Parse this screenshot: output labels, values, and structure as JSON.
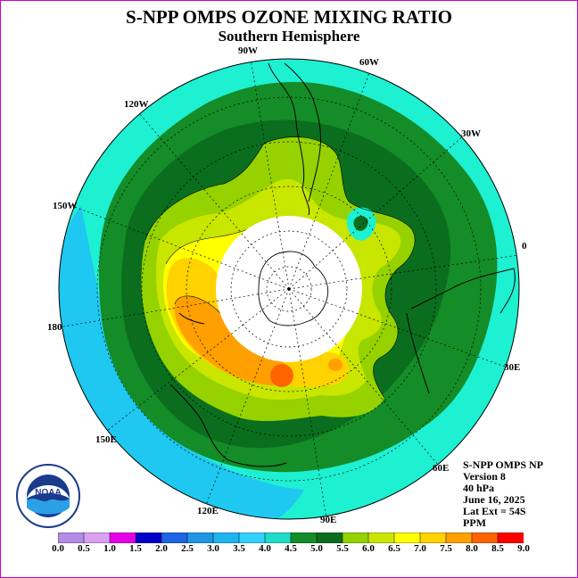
{
  "title": "S-NPP OMPS OZONE MIXING RATIO",
  "subtitle": "Southern Hemisphere",
  "longitude_labels": [
    "90W",
    "60W",
    "30W",
    "120W",
    "150W",
    "0",
    "180",
    "30E",
    "150E",
    "60E",
    "120E",
    "90E"
  ],
  "info": {
    "instrument": "S-NPP OMPS NP",
    "version": "Version 8",
    "level": "40 hPa",
    "date": "June 16, 2025",
    "lat_ext": "Lat Ext = 54S",
    "units": "PPM"
  },
  "logo": {
    "name": "NOAA"
  },
  "colorbar": {
    "ticks": [
      "0.0",
      "0.5",
      "1.0",
      "1.5",
      "2.0",
      "2.5",
      "3.0",
      "3.5",
      "4.0",
      "4.5",
      "5.0",
      "5.5",
      "6.0",
      "6.5",
      "7.0",
      "7.5",
      "8.0",
      "8.5",
      "9.0"
    ],
    "colors": [
      "#b28ce6",
      "#dca0f0",
      "#e600e6",
      "#0000c8",
      "#1e64e6",
      "#1e96e6",
      "#1eb4f0",
      "#32d2ff",
      "#1edcc8",
      "#148c28",
      "#0a6e1e",
      "#96d200",
      "#c8e600",
      "#ffff00",
      "#ffd200",
      "#ffa000",
      "#ff6400",
      "#ff0000",
      "#966446"
    ]
  }
}
